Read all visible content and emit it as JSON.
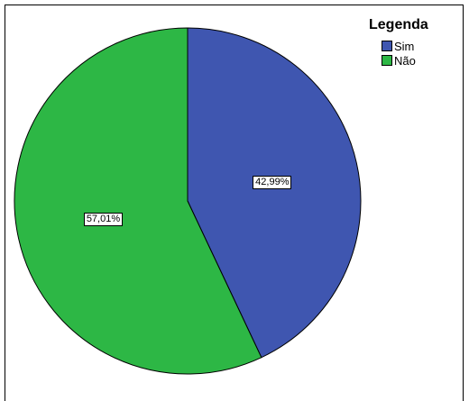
{
  "chart_data": {
    "type": "pie",
    "legend_title": "Legenda",
    "legend_position": "top-right",
    "slices": [
      {
        "name": "Sim",
        "value": 42.99,
        "label": "42,99%",
        "color": "#3F56B0"
      },
      {
        "name": "Não",
        "value": 57.01,
        "label": "57,01%",
        "color": "#2DB745"
      }
    ]
  }
}
